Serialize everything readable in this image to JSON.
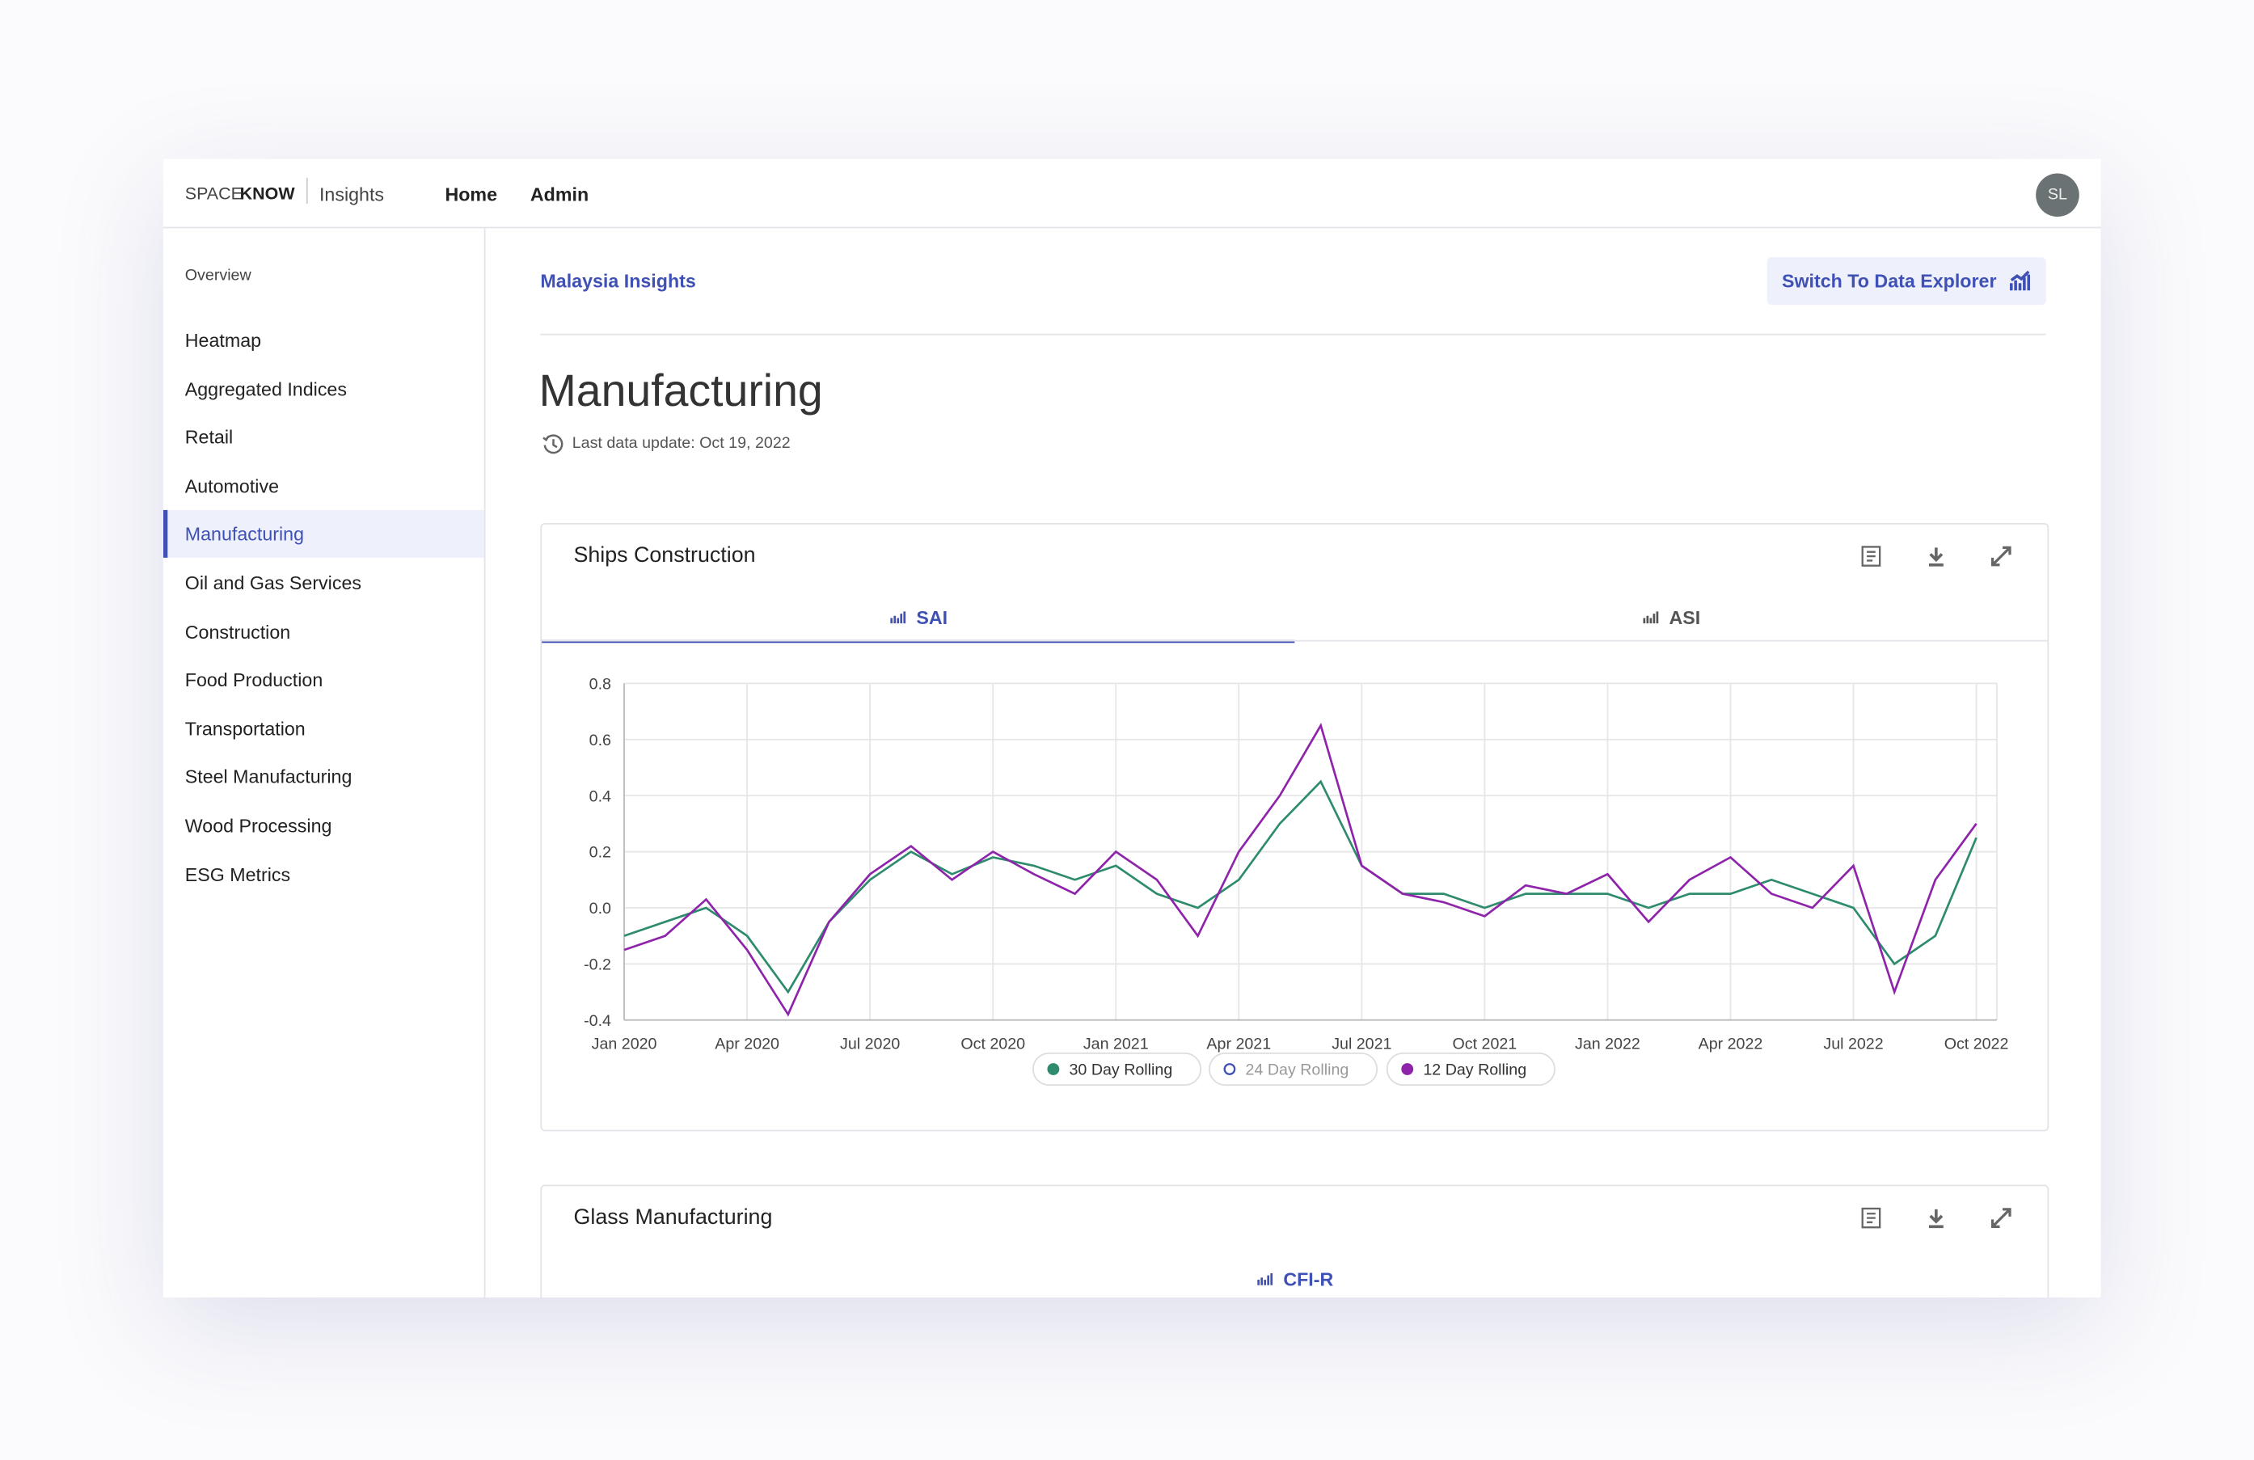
{
  "header": {
    "brand_a": "SPACE",
    "brand_b": "KNOW",
    "product": "Insights",
    "nav": [
      "Home",
      "Admin"
    ],
    "avatar": "SL"
  },
  "sidebar": {
    "heading": "Overview",
    "items": [
      "Heatmap",
      "Aggregated Indices",
      "Retail",
      "Automotive",
      "Manufacturing",
      "Oil and Gas Services",
      "Construction",
      "Food Production",
      "Transportation",
      "Steel Manufacturing",
      "Wood Processing",
      "ESG Metrics"
    ],
    "active": 4
  },
  "breadcrumb": "Malaysia Insights",
  "button": "Switch To Data Explorer",
  "title": "Manufacturing",
  "updated": "Last data update: Oct 19, 2022",
  "cards": [
    {
      "title": "Ships Construction",
      "tabs": [
        "SAI",
        "ASI"
      ],
      "active_tab": 0
    },
    {
      "title": "Glass Manufacturing",
      "tabs": [
        "CFI-R"
      ],
      "active_tab": 0
    }
  ],
  "chart_data": {
    "type": "line",
    "x": [
      "2020-01",
      "2020-02",
      "2020-03",
      "2020-04",
      "2020-05",
      "2020-06",
      "2020-07",
      "2020-08",
      "2020-09",
      "2020-10",
      "2020-11",
      "2020-12",
      "2021-01",
      "2021-02",
      "2021-03",
      "2021-04",
      "2021-05",
      "2021-06",
      "2021-07",
      "2021-08",
      "2021-09",
      "2021-10",
      "2021-11",
      "2021-12",
      "2022-01",
      "2022-02",
      "2022-03",
      "2022-04",
      "2022-05",
      "2022-06",
      "2022-07",
      "2022-08",
      "2022-09",
      "2022-10"
    ],
    "series": [
      {
        "name": "30 Day Rolling",
        "color": "#2e8b6e",
        "values": [
          -0.1,
          -0.05,
          0.0,
          -0.1,
          -0.3,
          -0.05,
          0.1,
          0.2,
          0.12,
          0.18,
          0.15,
          0.1,
          0.15,
          0.05,
          0.0,
          0.1,
          0.3,
          0.45,
          0.15,
          0.05,
          0.05,
          0.0,
          0.05,
          0.05,
          0.05,
          0.0,
          0.05,
          0.05,
          0.1,
          0.05,
          0.0,
          -0.2,
          -0.1,
          0.25
        ]
      },
      {
        "name": "24 Day Rolling",
        "color": "#3f51b5",
        "visible": false
      },
      {
        "name": "12 Day Rolling",
        "color": "#8e24aa",
        "values": [
          -0.15,
          -0.1,
          0.03,
          -0.15,
          -0.38,
          -0.05,
          0.12,
          0.22,
          0.1,
          0.2,
          0.12,
          0.05,
          0.2,
          0.1,
          -0.1,
          0.2,
          0.4,
          0.65,
          0.15,
          0.05,
          0.02,
          -0.03,
          0.08,
          0.05,
          0.12,
          -0.05,
          0.1,
          0.18,
          0.05,
          0.0,
          0.15,
          -0.3,
          0.1,
          0.3
        ]
      }
    ],
    "ylim": [
      -0.4,
      0.8
    ],
    "yticks": [
      -0.4,
      -0.2,
      {
        "value": 0,
        "label": "0.0"
      },
      0.2,
      0.4,
      0.6,
      0.8
    ],
    "xticks": [
      {
        "value": "2020-01",
        "label": "Jan 2020"
      },
      {
        "value": "2020-04",
        "label": "Apr 2020"
      },
      {
        "value": "2020-07",
        "label": "Jul 2020"
      },
      {
        "value": "2020-10",
        "label": "Oct 2020"
      },
      {
        "value": "2021-01",
        "label": "Jan 2021"
      },
      {
        "value": "2021-04",
        "label": "Apr 2021"
      },
      {
        "value": "2021-07",
        "label": "Jul 2021"
      },
      {
        "value": "2021-10",
        "label": "Oct 2021"
      },
      {
        "value": "2022-01",
        "label": "Jan 2022"
      },
      {
        "value": "2022-04",
        "label": "Apr 2022"
      },
      {
        "value": "2022-07",
        "label": "Jul 2022"
      },
      {
        "value": "2022-10",
        "label": "Oct 2022"
      }
    ],
    "grid": true
  }
}
